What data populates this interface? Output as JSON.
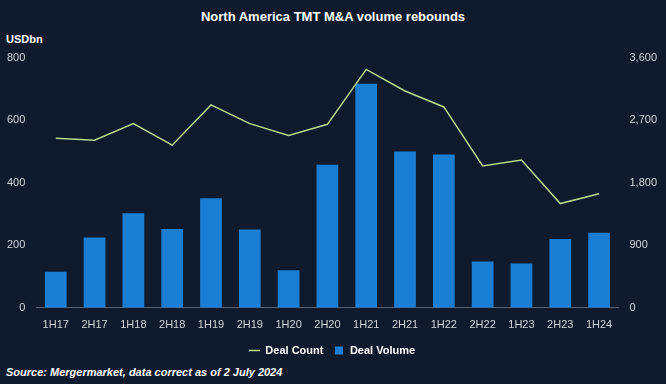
{
  "chart_data": {
    "type": "bar",
    "title": "North America TMT M&A volume rebounds",
    "y_label": "USDbn",
    "source": "Source: Mergermarket, data correct as of 2 July 2024",
    "categories": [
      "1H17",
      "2H17",
      "1H18",
      "2H18",
      "1H19",
      "2H19",
      "1H20",
      "2H20",
      "1H21",
      "2H21",
      "1H22",
      "2H22",
      "1H23",
      "2H23",
      "1H24"
    ],
    "series": [
      {
        "name": "Deal Volume",
        "type": "bar",
        "color": "#1a7fd4",
        "values": [
          115,
          225,
          302,
          252,
          350,
          250,
          120,
          457,
          716,
          500,
          490,
          148,
          142,
          220,
          240
        ]
      },
      {
        "name": "Deal Count",
        "type": "line",
        "axis": "y2",
        "color": "#b8d98e",
        "values": [
          2440,
          2410,
          2650,
          2340,
          2920,
          2650,
          2480,
          2640,
          3430,
          3120,
          2890,
          2040,
          2125,
          1500,
          1640
        ]
      }
    ],
    "ylim": [
      0,
      800
    ],
    "yticks": [
      0,
      200,
      400,
      600,
      800
    ],
    "y2lim": [
      0,
      3600
    ],
    "y2ticks": [
      0,
      900,
      1800,
      2700,
      3600
    ],
    "grid": false,
    "legend": "bottom"
  }
}
